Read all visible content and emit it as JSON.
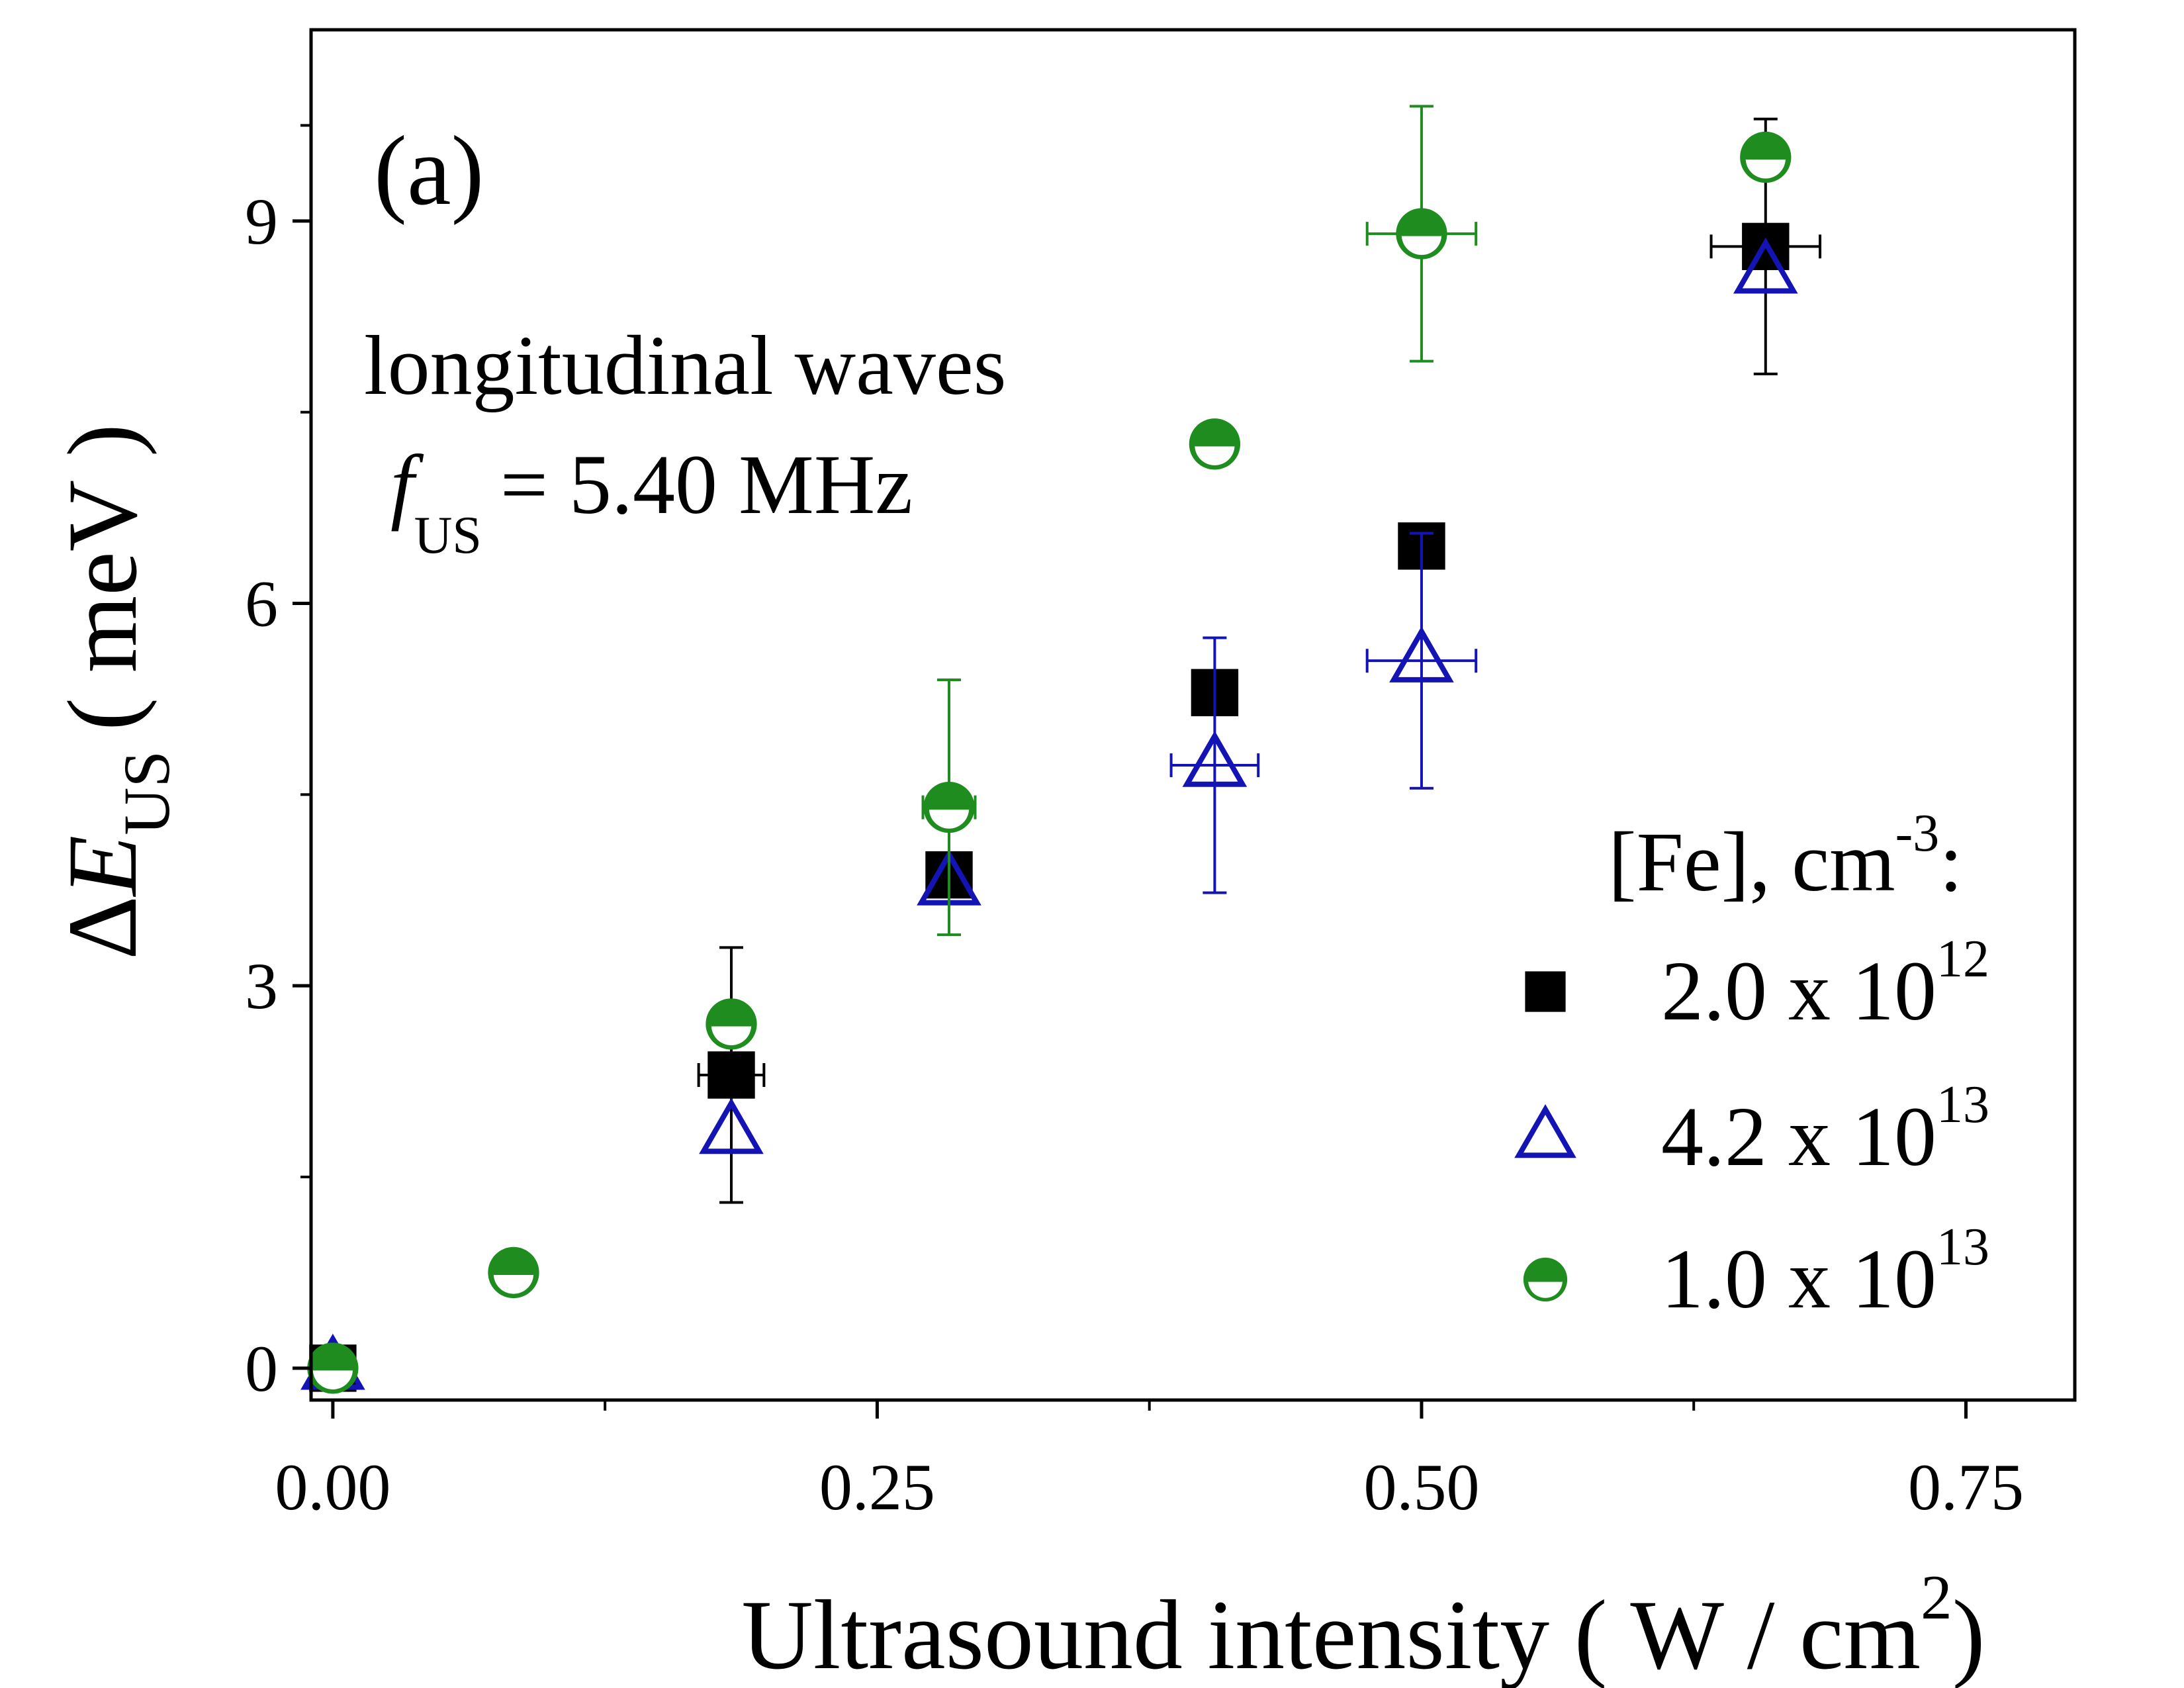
{
  "chart_data": {
    "type": "scatter",
    "panel_label": "(a)",
    "annotation_line1": "longitudinal waves",
    "annotation_f": "f",
    "annotation_f_sub": "US",
    "annotation_value": "= 5.40 MHz",
    "xlabel_main": "Ultrasound intensity ( W / cm",
    "xlabel_sup": "2",
    "xlabel_close": ")",
    "ylabel_delta": "Δ",
    "ylabel_E": "E",
    "ylabel_sub": "US",
    "ylabel_unit": "( meV )",
    "xlim": [
      -0.01,
      0.8
    ],
    "ylim": [
      -0.25,
      10.5
    ],
    "x_ticks": [
      0.0,
      0.25,
      0.5,
      0.75
    ],
    "x_tick_labels": [
      "0.00",
      "0.25",
      "0.50",
      "0.75"
    ],
    "x_minor_ticks": [
      0.125,
      0.375,
      0.625
    ],
    "y_ticks": [
      0,
      3,
      6,
      9
    ],
    "y_tick_labels": [
      "0",
      "3",
      "6",
      "9"
    ],
    "y_minor_ticks": [
      1.5,
      4.5,
      7.5,
      9.75
    ],
    "legend_title": "[Fe], cm",
    "legend_title_sup": "-3",
    "legend_title_colon": ":",
    "legend_position": "bottom-right",
    "series": [
      {
        "name": "2.0 x 10",
        "name_sup": "12",
        "marker": "square",
        "color": "#000000",
        "points": [
          {
            "x": 0.0,
            "y": 0.0
          },
          {
            "x": 0.183,
            "y": 2.3,
            "xerr": 0.015,
            "yerr": 1.0
          },
          {
            "x": 0.283,
            "y": 3.87
          },
          {
            "x": 0.405,
            "y": 5.3
          },
          {
            "x": 0.5,
            "y": 6.45
          },
          {
            "x": 0.658,
            "y": 8.8,
            "xerr": 0.025,
            "yerr": 1.0
          }
        ]
      },
      {
        "name": "4.2 x 10",
        "name_sup": "13",
        "marker": "triangle-open",
        "color": "#1414b4",
        "points": [
          {
            "x": 0.0,
            "y": 0.0
          },
          {
            "x": 0.183,
            "y": 1.85
          },
          {
            "x": 0.283,
            "y": 3.8
          },
          {
            "x": 0.405,
            "y": 4.73,
            "xerr": 0.02,
            "yerr": 1.0
          },
          {
            "x": 0.5,
            "y": 5.55,
            "xerr": 0.025,
            "yerr": 1.0
          },
          {
            "x": 0.658,
            "y": 8.6
          }
        ]
      },
      {
        "name": "1.0 x 10",
        "name_sup": "13",
        "marker": "circle-half",
        "color": "#1e8c1e",
        "points": [
          {
            "x": 0.0,
            "y": 0.0
          },
          {
            "x": 0.083,
            "y": 0.75
          },
          {
            "x": 0.183,
            "y": 2.7
          },
          {
            "x": 0.283,
            "y": 4.4,
            "xerr": 0.012,
            "yerr": 1.0
          },
          {
            "x": 0.405,
            "y": 7.25
          },
          {
            "x": 0.5,
            "y": 8.9,
            "xerr": 0.025,
            "yerr": 1.0
          },
          {
            "x": 0.658,
            "y": 9.5
          }
        ]
      }
    ]
  }
}
